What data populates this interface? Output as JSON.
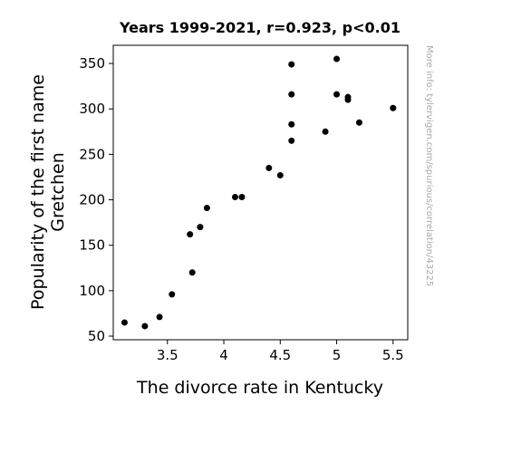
{
  "chart_data": {
    "type": "scatter",
    "title": "Years 1999-2021, r=0.923, p<0.01",
    "xlabel": "The divorce rate in Kentucky",
    "ylabel_lines": [
      "Popularity of the first name",
      "Gretchen"
    ],
    "watermark": "More info: tylervigen.com/spurious/correlation/43225",
    "xlim": [
      3.02,
      5.63
    ],
    "ylim": [
      46,
      370
    ],
    "xticks": [
      3.5,
      4,
      4.5,
      5,
      5.5
    ],
    "xtick_labels": [
      "3.5",
      "4",
      "4.5",
      "5",
      "5.5"
    ],
    "yticks": [
      50,
      100,
      150,
      200,
      250,
      300,
      350
    ],
    "ytick_labels": [
      "50",
      "100",
      "150",
      "200",
      "250",
      "300",
      "350"
    ],
    "grid": false,
    "marker_color": "#000000",
    "points": [
      {
        "x": 3.12,
        "y": 65
      },
      {
        "x": 3.3,
        "y": 61
      },
      {
        "x": 3.43,
        "y": 71
      },
      {
        "x": 3.54,
        "y": 96
      },
      {
        "x": 3.7,
        "y": 162
      },
      {
        "x": 3.72,
        "y": 120
      },
      {
        "x": 3.79,
        "y": 170
      },
      {
        "x": 3.85,
        "y": 191
      },
      {
        "x": 4.1,
        "y": 203
      },
      {
        "x": 4.16,
        "y": 203
      },
      {
        "x": 4.4,
        "y": 235
      },
      {
        "x": 4.5,
        "y": 227
      },
      {
        "x": 4.6,
        "y": 349
      },
      {
        "x": 4.6,
        "y": 316
      },
      {
        "x": 4.6,
        "y": 283
      },
      {
        "x": 4.6,
        "y": 265
      },
      {
        "x": 4.9,
        "y": 275
      },
      {
        "x": 5.0,
        "y": 355
      },
      {
        "x": 5.0,
        "y": 316
      },
      {
        "x": 5.1,
        "y": 313
      },
      {
        "x": 5.1,
        "y": 310
      },
      {
        "x": 5.2,
        "y": 285
      },
      {
        "x": 5.5,
        "y": 301
      }
    ]
  }
}
